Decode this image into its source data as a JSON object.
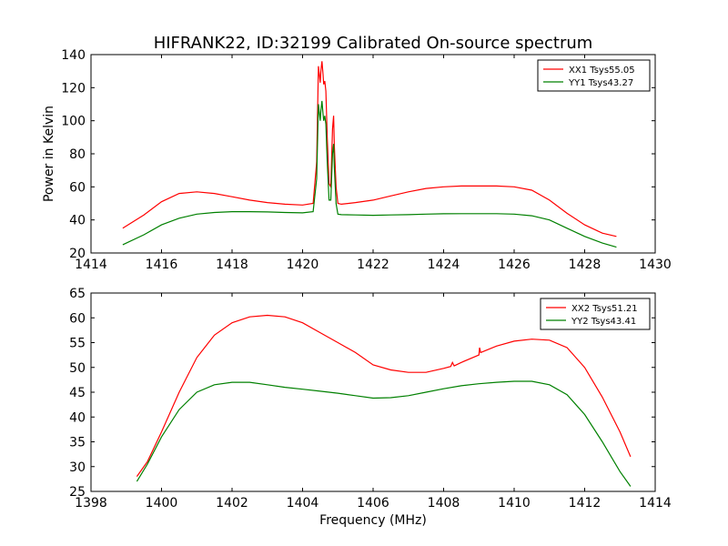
{
  "figure": {
    "title": "HIFRANK22, ID:32199 Calibrated On-source spectrum",
    "ylabel": "Power in Kelvin",
    "xlabel": "Frequency (MHz)"
  },
  "chart_data": [
    {
      "type": "line",
      "xlim": [
        1414,
        1430
      ],
      "ylim": [
        20,
        140
      ],
      "xticks": [
        "1414",
        "1416",
        "1418",
        "1420",
        "1422",
        "1424",
        "1426",
        "1428",
        "1430"
      ],
      "yticks": [
        "20",
        "40",
        "60",
        "80",
        "100",
        "120",
        "140"
      ],
      "legend_position": "top-right",
      "series": [
        {
          "name": "XX1 Tsys55.05",
          "color": "#ff0000",
          "x": [
            1414.9,
            1415.5,
            1416.0,
            1416.5,
            1417.0,
            1417.5,
            1418.0,
            1418.5,
            1419.0,
            1419.5,
            1420.0,
            1420.3,
            1420.4,
            1420.45,
            1420.5,
            1420.52,
            1420.55,
            1420.58,
            1420.6,
            1420.63,
            1420.66,
            1420.7,
            1420.75,
            1420.8,
            1420.85,
            1420.88,
            1420.9,
            1420.95,
            1421.0,
            1421.1,
            1421.5,
            1422.0,
            1422.5,
            1423.0,
            1423.5,
            1424.0,
            1424.5,
            1425.0,
            1425.5,
            1426.0,
            1426.5,
            1427.0,
            1427.5,
            1428.0,
            1428.5,
            1428.9
          ],
          "values": [
            35,
            43,
            51,
            56,
            57,
            56,
            54,
            52,
            50.5,
            49.5,
            49,
            50,
            75,
            133,
            123,
            130,
            136,
            128,
            122,
            124,
            118,
            90,
            62,
            60,
            95,
            103,
            85,
            60,
            50,
            49.5,
            50.5,
            52,
            54.5,
            57,
            59,
            60,
            60.5,
            60.5,
            60.5,
            60,
            58,
            52,
            44,
            37,
            32,
            30
          ]
        },
        {
          "name": "YY1 Tsys43.27",
          "color": "#008000",
          "x": [
            1414.9,
            1415.5,
            1416.0,
            1416.5,
            1417.0,
            1417.5,
            1418.0,
            1418.5,
            1419.0,
            1419.5,
            1420.0,
            1420.3,
            1420.4,
            1420.45,
            1420.5,
            1420.52,
            1420.55,
            1420.58,
            1420.6,
            1420.63,
            1420.66,
            1420.7,
            1420.75,
            1420.8,
            1420.85,
            1420.88,
            1420.9,
            1420.95,
            1421.0,
            1421.1,
            1421.5,
            1422.0,
            1422.5,
            1423.0,
            1423.5,
            1424.0,
            1424.5,
            1425.0,
            1425.5,
            1426.0,
            1426.5,
            1427.0,
            1427.5,
            1428.0,
            1428.5,
            1428.9
          ],
          "values": [
            25,
            31,
            37,
            41,
            43.5,
            44.5,
            45,
            45,
            44.8,
            44.5,
            44.3,
            45,
            65,
            110,
            100,
            106,
            112,
            104,
            100,
            103,
            98,
            75,
            52,
            52,
            80,
            86,
            72,
            50,
            43.5,
            43.2,
            43,
            42.8,
            43,
            43.2,
            43.5,
            43.7,
            43.8,
            43.8,
            43.8,
            43.5,
            42.5,
            40,
            35,
            30,
            26,
            23.5
          ]
        }
      ]
    },
    {
      "type": "line",
      "xlim": [
        1398,
        1414
      ],
      "ylim": [
        25,
        65
      ],
      "xticks": [
        "1398",
        "1400",
        "1402",
        "1404",
        "1406",
        "1408",
        "1410",
        "1412",
        "1414"
      ],
      "yticks": [
        "25",
        "30",
        "35",
        "40",
        "45",
        "50",
        "55",
        "60",
        "65"
      ],
      "legend_position": "top-right",
      "series": [
        {
          "name": "XX2 Tsys51.21",
          "color": "#ff0000",
          "x": [
            1399.3,
            1399.6,
            1400.0,
            1400.5,
            1401.0,
            1401.5,
            1402.0,
            1402.5,
            1403.0,
            1403.5,
            1404.0,
            1404.5,
            1405.0,
            1405.5,
            1406.0,
            1406.5,
            1407.0,
            1407.5,
            1408.0,
            1408.2,
            1408.25,
            1408.3,
            1408.5,
            1409.0,
            1409.02,
            1409.05,
            1409.5,
            1410.0,
            1410.5,
            1411.0,
            1411.5,
            1412.0,
            1412.5,
            1413.0,
            1413.3
          ],
          "values": [
            28,
            31,
            37,
            45,
            52,
            56.5,
            59,
            60.2,
            60.5,
            60.2,
            59,
            57,
            55,
            53,
            50.5,
            49.5,
            49,
            49,
            49.8,
            50.2,
            51,
            50.3,
            51,
            52.5,
            54,
            53,
            54.3,
            55.3,
            55.7,
            55.5,
            54,
            50,
            44,
            37,
            32
          ]
        },
        {
          "name": "YY2 Tsys43.41",
          "color": "#008000",
          "x": [
            1399.3,
            1399.6,
            1400.0,
            1400.5,
            1401.0,
            1401.5,
            1402.0,
            1402.5,
            1403.0,
            1403.5,
            1404.0,
            1404.5,
            1405.0,
            1405.5,
            1406.0,
            1406.5,
            1407.0,
            1407.5,
            1408.0,
            1408.5,
            1409.0,
            1409.5,
            1410.0,
            1410.5,
            1411.0,
            1411.5,
            1412.0,
            1412.5,
            1413.0,
            1413.3
          ],
          "values": [
            27,
            30.5,
            36,
            41.5,
            45,
            46.5,
            47,
            47,
            46.5,
            46,
            45.6,
            45.2,
            44.8,
            44.3,
            43.8,
            43.9,
            44.3,
            45,
            45.7,
            46.3,
            46.7,
            47,
            47.2,
            47.2,
            46.5,
            44.5,
            40.5,
            35,
            29,
            26
          ]
        }
      ]
    }
  ]
}
